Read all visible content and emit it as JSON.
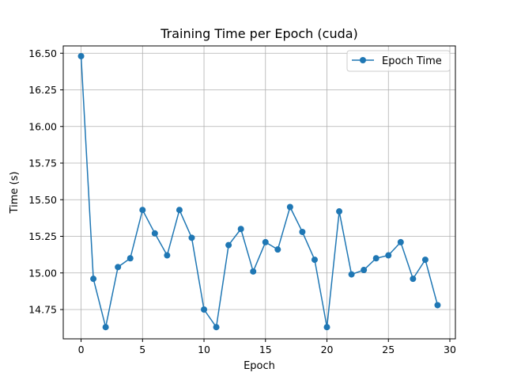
{
  "chart_data": {
    "type": "line",
    "title": "Training Time per Epoch (cuda)",
    "xlabel": "Epoch",
    "ylabel": "Time (s)",
    "xlim": [
      -1.45,
      30.45
    ],
    "ylim": [
      14.55,
      16.55
    ],
    "xticks": [
      0,
      5,
      10,
      15,
      20,
      25,
      30
    ],
    "yticks": [
      14.75,
      15.0,
      15.25,
      15.5,
      15.75,
      16.0,
      16.25,
      16.5
    ],
    "ytick_labels": [
      "14.75",
      "15.00",
      "15.25",
      "15.50",
      "15.75",
      "16.00",
      "16.25",
      "16.50"
    ],
    "grid": true,
    "legend_position": "top-right",
    "series": [
      {
        "name": "Epoch Time",
        "color": "#1f77b4",
        "marker": "circle",
        "x": [
          0,
          1,
          2,
          3,
          4,
          5,
          6,
          7,
          8,
          9,
          10,
          11,
          12,
          13,
          14,
          15,
          16,
          17,
          18,
          19,
          20,
          21,
          22,
          23,
          24,
          25,
          26,
          27,
          28,
          29
        ],
        "y": [
          16.48,
          14.96,
          14.63,
          15.04,
          15.1,
          15.43,
          15.27,
          15.12,
          15.43,
          15.24,
          14.75,
          14.63,
          15.19,
          15.3,
          15.01,
          15.21,
          15.16,
          15.45,
          15.28,
          15.09,
          14.63,
          15.42,
          14.99,
          15.02,
          15.1,
          15.12,
          15.21,
          14.96,
          15.09,
          14.78
        ]
      }
    ]
  }
}
